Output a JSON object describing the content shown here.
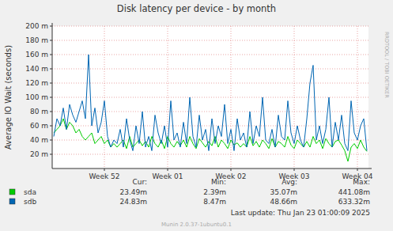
{
  "chart_data": {
    "type": "line",
    "title": "Disk latency per device - by month",
    "y_label": "Average IO Wait (seconds)",
    "categories": [
      null,
      null,
      null,
      null,
      null,
      null,
      null,
      null,
      null,
      null,
      null,
      null,
      null,
      null,
      null,
      null,
      "Week 52",
      null,
      null,
      null,
      null,
      null,
      null,
      null,
      null,
      null,
      null,
      null,
      null,
      null,
      null,
      null,
      null,
      null,
      null,
      null,
      "Week 01",
      null,
      null,
      null,
      null,
      null,
      null,
      null,
      null,
      null,
      null,
      null,
      null,
      null,
      null,
      null,
      null,
      null,
      null,
      null,
      "Week 02",
      null,
      null,
      null,
      null,
      null,
      null,
      null,
      null,
      null,
      null,
      null,
      null,
      null,
      null,
      null,
      null,
      null,
      null,
      null,
      "Week 03",
      null,
      null,
      null,
      null,
      null,
      null,
      null,
      null,
      null,
      null,
      null,
      null,
      null,
      null,
      null,
      null,
      null,
      null,
      null,
      "Week 04",
      null,
      null,
      null
    ],
    "series": [
      {
        "name": "sda",
        "color": "#00cc00",
        "values": [
          0.05,
          0.055,
          0.06,
          0.07,
          0.055,
          0.065,
          0.06,
          0.05,
          0.055,
          0.045,
          0.04,
          0.045,
          0.05,
          0.035,
          0.04,
          0.045,
          0.035,
          0.04,
          0.03,
          0.035,
          0.03,
          0.035,
          0.04,
          0.028,
          0.045,
          0.03,
          0.035,
          0.04,
          0.032,
          0.038,
          0.03,
          0.045,
          0.035,
          0.03,
          0.04,
          0.028,
          0.045,
          0.035,
          0.03,
          0.038,
          0.032,
          0.04,
          0.03,
          0.045,
          0.035,
          0.028,
          0.042,
          0.036,
          0.03,
          0.038,
          0.032,
          0.045,
          0.03,
          0.04,
          0.035,
          0.028,
          0.04,
          0.033,
          0.036,
          0.03,
          0.035,
          0.03,
          0.045,
          0.032,
          0.038,
          0.03,
          0.04,
          0.035,
          0.028,
          0.042,
          0.03,
          0.038,
          0.035,
          0.03,
          0.045,
          0.033,
          0.028,
          0.04,
          0.035,
          0.03,
          0.038,
          0.03,
          0.045,
          0.035,
          0.04,
          0.028,
          0.042,
          0.035,
          0.03,
          0.038,
          0.04,
          0.033,
          0.025,
          0.01,
          0.03,
          0.035,
          0.028,
          0.04,
          0.03,
          0.024
        ]
      },
      {
        "name": "sdb",
        "color": "#0066b3",
        "values": [
          0.045,
          0.07,
          0.06,
          0.085,
          0.055,
          0.09,
          0.075,
          0.065,
          0.08,
          0.095,
          0.07,
          0.16,
          0.06,
          0.085,
          0.05,
          0.065,
          0.095,
          0.045,
          0.03,
          0.04,
          0.035,
          0.055,
          0.03,
          0.07,
          0.04,
          0.025,
          0.06,
          0.035,
          0.08,
          0.03,
          0.045,
          0.025,
          0.075,
          0.05,
          0.035,
          0.06,
          0.03,
          0.095,
          0.04,
          0.05,
          0.03,
          0.065,
          0.035,
          0.1,
          0.045,
          0.03,
          0.075,
          0.04,
          0.055,
          0.025,
          0.07,
          0.035,
          0.06,
          0.045,
          0.09,
          0.035,
          0.055,
          0.025,
          0.07,
          0.04,
          0.05,
          0.03,
          0.08,
          0.035,
          0.06,
          0.045,
          0.1,
          0.04,
          0.035,
          0.055,
          0.03,
          0.075,
          0.045,
          0.04,
          0.095,
          0.05,
          0.035,
          0.06,
          0.04,
          0.03,
          0.07,
          0.12,
          0.145,
          0.04,
          0.06,
          0.035,
          0.055,
          0.1,
          0.03,
          0.065,
          0.04,
          0.075,
          0.035,
          0.025,
          0.095,
          0.05,
          0.04,
          0.06,
          0.07,
          0.025
        ]
      }
    ],
    "ylim": [
      0,
      0.2
    ],
    "yticks": [
      {
        "value": 0.02,
        "label": "20 m"
      },
      {
        "value": 0.04,
        "label": "40 m"
      },
      {
        "value": 0.06,
        "label": "60 m"
      },
      {
        "value": 0.08,
        "label": "80 m"
      },
      {
        "value": 0.1,
        "label": "100 m"
      },
      {
        "value": 0.12,
        "label": "120 m"
      },
      {
        "value": 0.14,
        "label": "140 m"
      },
      {
        "value": 0.16,
        "label": "160 m"
      },
      {
        "value": 0.18,
        "label": "180 m"
      },
      {
        "value": 0.2,
        "label": "200 m"
      }
    ],
    "grid": true,
    "legend_stats": {
      "columns": [
        "Cur:",
        "Min:",
        "Avg:",
        "Max:"
      ],
      "rows": [
        [
          "23.49m",
          "2.39m",
          "35.07m",
          "441.08m"
        ],
        [
          "24.83m",
          "8.47m",
          "48.66m",
          "633.32m"
        ]
      ]
    },
    "last_update": "Last update: Thu Jan 23 01:00:09 2025",
    "footer": "Munin 2.0.37-1ubuntu0.1",
    "watermark": "RRDTOOL / TOBI OETIKER"
  }
}
